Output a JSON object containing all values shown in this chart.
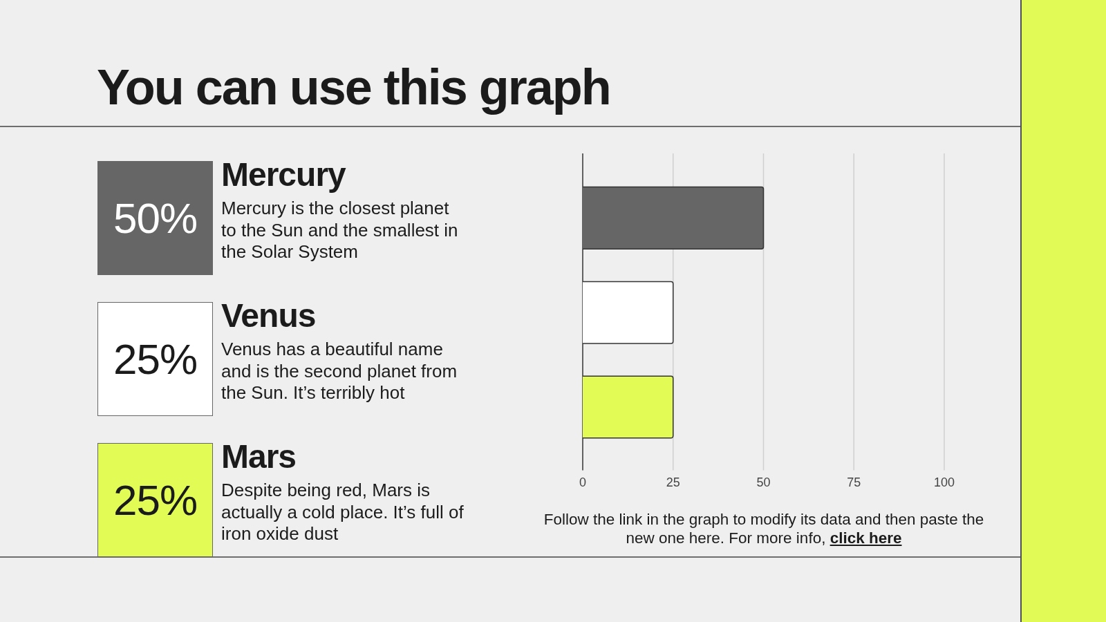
{
  "chart_data": [
    {
      "type": "other",
      "title": "You can use this graph",
      "categories": [
        "Mercury",
        "Venus",
        "Mars"
      ],
      "value_labels": [
        "50%",
        "25%",
        "25%"
      ],
      "colors": [
        "#666666",
        "#ffffff",
        "#e2fb55"
      ],
      "annotations": [
        "Mercury is the closest planet to the Sun and the smallest in the Solar System",
        "Venus has a beautiful name and is the second planet from the Sun. It’s terribly hot",
        "Despite being red, Mars is actually a cold place. It’s full of iron oxide dust"
      ]
    },
    {
      "type": "bar",
      "orientation": "horizontal",
      "categories": [
        null,
        null,
        null
      ],
      "values": [
        50,
        25,
        25
      ],
      "colors": [
        "#666666",
        "#ffffff",
        "#e2fb55"
      ],
      "xlim": [
        0,
        100
      ],
      "xticks": [
        0,
        25,
        50,
        75,
        100
      ],
      "grid": "x",
      "tick_labels": "x",
      "annotations": [
        "Follow the link in the graph to modify its data and then paste the new one here. For more info,",
        "click here"
      ]
    }
  ]
}
